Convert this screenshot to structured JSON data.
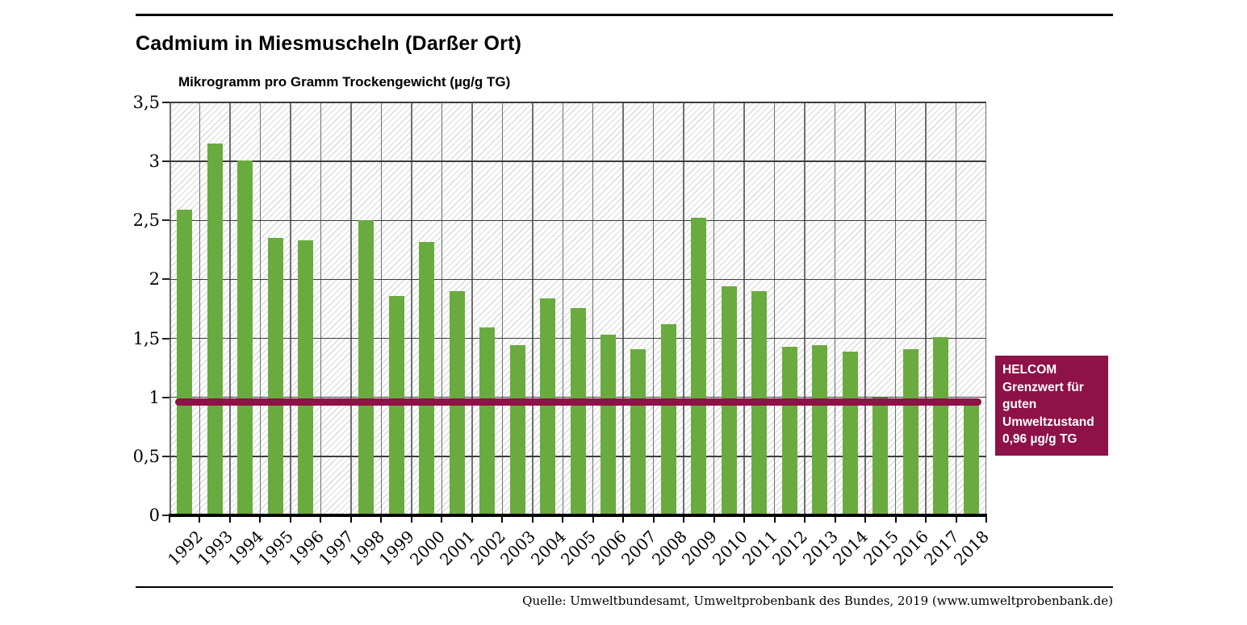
{
  "page": {
    "title": "Cadmium in Miesmuscheln (Darßer Ort)",
    "source": "Quelle: Umweltbundesamt, Umweltprobenbank des Bundes, 2019 (www.umweltprobenbank.de)"
  },
  "colors": {
    "bar_green": "#6aab3f",
    "threshold_maroon": "#8e1147",
    "hgrid": "#3c3c3c",
    "vgrid": "#6f6f6f",
    "hatch": "#dadada",
    "axis": "#000000"
  },
  "chart_data": {
    "type": "bar",
    "title": "Cadmium in Miesmuscheln (Darßer Ort)",
    "ylabel": "Mikrogramm pro Gramm Trockengewicht (µg/g TG)",
    "xlabel": "",
    "categories": [
      "1992",
      "1993",
      "1994",
      "1995",
      "1996",
      "1997",
      "1998",
      "1999",
      "2000",
      "2001",
      "2002",
      "2003",
      "2004",
      "2005",
      "2006",
      "2007",
      "2008",
      "2009",
      "2010",
      "2011",
      "2012",
      "2013",
      "2014",
      "2015",
      "2016",
      "2017",
      "2018"
    ],
    "values": [
      2.59,
      3.15,
      3.01,
      2.35,
      2.33,
      null,
      2.5,
      1.86,
      2.32,
      1.9,
      1.59,
      1.44,
      1.84,
      1.76,
      1.53,
      1.41,
      1.62,
      2.52,
      1.94,
      1.9,
      1.43,
      1.44,
      1.39,
      1.0,
      1.41,
      1.51,
      0.97
    ],
    "ylim": [
      0,
      3.5
    ],
    "ytick_step": 0.5,
    "yticks": [
      0,
      0.5,
      1,
      1.5,
      2,
      2.5,
      3,
      3.5
    ],
    "ytick_labels": [
      "0",
      "0,5",
      "1",
      "1,5",
      "2",
      "2,5",
      "3",
      "3,5"
    ],
    "grid": true,
    "legend": "none",
    "bar_color": "#6aab3f",
    "threshold": {
      "value": 0.96,
      "color": "#8e1147",
      "label_lines": [
        "HELCOM",
        "Grenzwert für",
        "guten",
        "Umweltzustand",
        "0,96 µg/g TG"
      ]
    }
  }
}
